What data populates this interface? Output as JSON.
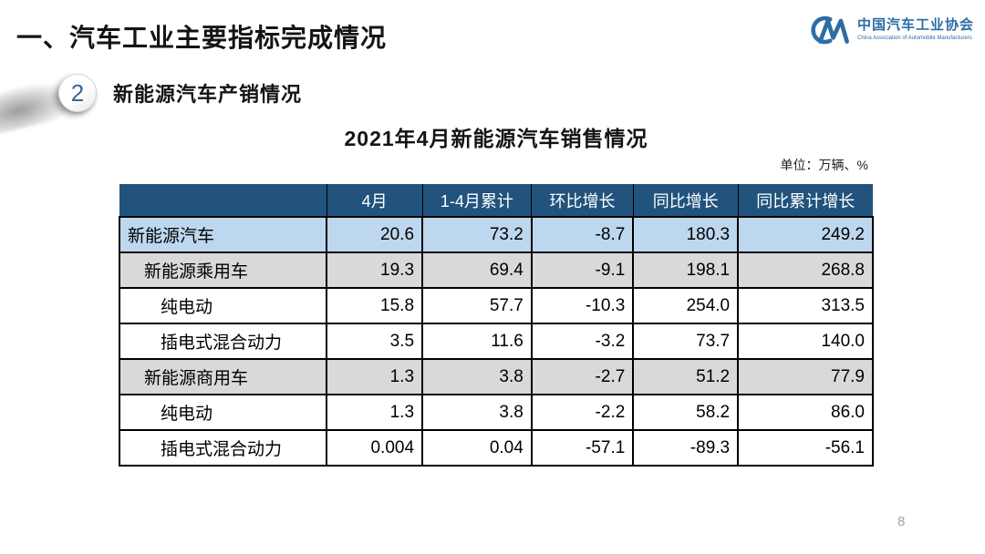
{
  "slide": {
    "title": "一、汽车工业主要指标完成情况",
    "section": {
      "number": "2",
      "label": "新能源汽车产销情况"
    },
    "table_title": "2021年4月新能源汽车销售情况",
    "unit_note": "单位：万辆、%",
    "page_number": "8"
  },
  "logo": {
    "monogram": "CM",
    "name_cn": "中国汽车工业协会",
    "name_en": "China Association of Automobile Manufacturers"
  },
  "colors": {
    "header_bg": "#21537D",
    "row_highlight_blue": "#BDD7EE",
    "row_gray": "#D9D9D9",
    "logo_blue": "#2E6DA3"
  },
  "table": {
    "columns": [
      "",
      "4月",
      "1-4月累计",
      "环比增长",
      "同比增长",
      "同比累计增长"
    ],
    "rows": [
      {
        "label": "新能源汽车",
        "indent": 0,
        "bg": "#BDD7EE",
        "values": [
          "20.6",
          "73.2",
          "-8.7",
          "180.3",
          "249.2"
        ]
      },
      {
        "label": "新能源乘用车",
        "indent": 1,
        "bg": "#D9D9D9",
        "values": [
          "19.3",
          "69.4",
          "-9.1",
          "198.1",
          "268.8"
        ]
      },
      {
        "label": "纯电动",
        "indent": 2,
        "bg": "#FFFFFF",
        "values": [
          "15.8",
          "57.7",
          "-10.3",
          "254.0",
          "313.5"
        ]
      },
      {
        "label": "插电式混合动力",
        "indent": 2,
        "bg": "#FFFFFF",
        "values": [
          "3.5",
          "11.6",
          "-3.2",
          "73.7",
          "140.0"
        ]
      },
      {
        "label": "新能源商用车",
        "indent": 1,
        "bg": "#D9D9D9",
        "values": [
          "1.3",
          "3.8",
          "-2.7",
          "51.2",
          "77.9"
        ]
      },
      {
        "label": "纯电动",
        "indent": 2,
        "bg": "#FFFFFF",
        "values": [
          "1.3",
          "3.8",
          "-2.2",
          "58.2",
          "86.0"
        ]
      },
      {
        "label": "插电式混合动力",
        "indent": 2,
        "bg": "#FFFFFF",
        "values": [
          "0.004",
          "0.04",
          "-57.1",
          "-89.3",
          "-56.1"
        ]
      }
    ]
  }
}
